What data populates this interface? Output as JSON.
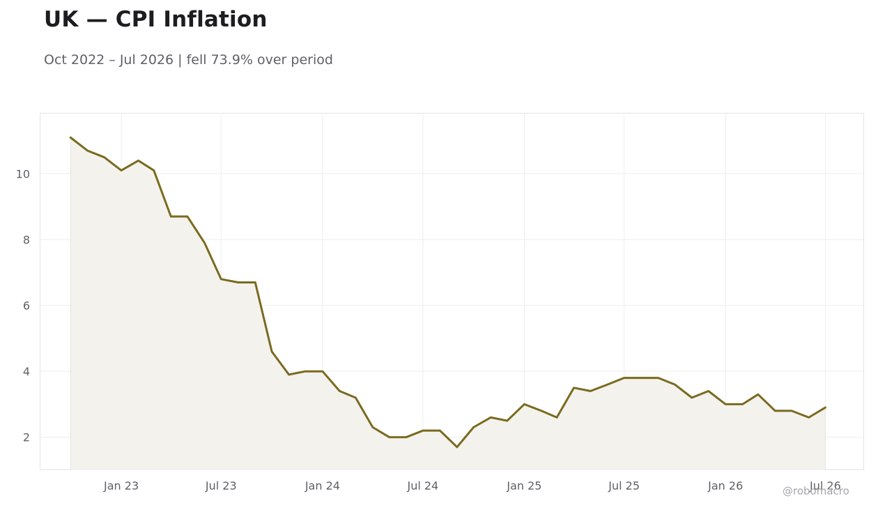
{
  "title": "UK — CPI Inflation",
  "subtitle": "Oct 2022 – Jul 2026 | fell 73.9% over period",
  "watermark": "@robomacro",
  "chart_data": {
    "type": "area",
    "title": "UK — CPI Inflation",
    "subtitle": "Oct 2022 – Jul 2026 | fell 73.9% over period",
    "xlabel": "",
    "ylabel": "",
    "grid": true,
    "legend": "none",
    "line_color": "#7a6a1f",
    "fill_color": "#f3f2ed",
    "ylim": [
      1.0,
      11.85
    ],
    "xlim": [
      "2022-08-06",
      "2026-09-08"
    ],
    "y_ticks": [
      2,
      4,
      6,
      8,
      10
    ],
    "y_tick_labels": [
      "2",
      "4",
      "6",
      "8",
      "10"
    ],
    "x_ticks": [
      "2023-01-01",
      "2023-07-01",
      "2024-01-01",
      "2024-07-01",
      "2025-01-01",
      "2025-07-01",
      "2026-01-01",
      "2026-07-01"
    ],
    "x_tick_labels": [
      "Jan 23",
      "Jul 23",
      "Jan 24",
      "Jul 24",
      "Jan 25",
      "Jul 25",
      "Jan 26",
      "Jul 26"
    ],
    "x": [
      "2022-10-01",
      "2022-11-01",
      "2022-12-01",
      "2023-01-01",
      "2023-02-01",
      "2023-03-01",
      "2023-04-01",
      "2023-05-01",
      "2023-06-01",
      "2023-07-01",
      "2023-08-01",
      "2023-09-01",
      "2023-10-01",
      "2023-11-01",
      "2023-12-01",
      "2024-01-01",
      "2024-02-01",
      "2024-03-01",
      "2024-04-01",
      "2024-05-01",
      "2024-06-01",
      "2024-07-01",
      "2024-08-01",
      "2024-09-01",
      "2024-10-01",
      "2024-11-01",
      "2024-12-01",
      "2025-01-01",
      "2025-02-01",
      "2025-03-01",
      "2025-04-01",
      "2025-05-01",
      "2025-06-01",
      "2025-07-01",
      "2025-08-01",
      "2025-09-01",
      "2025-10-01",
      "2025-11-01",
      "2025-12-01",
      "2026-01-01",
      "2026-02-01",
      "2026-03-01",
      "2026-04-01",
      "2026-05-01",
      "2026-06-01",
      "2026-07-01"
    ],
    "y": [
      11.1,
      10.7,
      10.5,
      10.1,
      10.4,
      10.1,
      8.7,
      8.7,
      7.9,
      6.8,
      6.7,
      6.7,
      4.6,
      3.9,
      4.0,
      4.0,
      3.4,
      3.2,
      2.3,
      2.0,
      2.0,
      2.2,
      2.2,
      1.7,
      2.3,
      2.6,
      2.5,
      3.0,
      2.8,
      2.6,
      3.5,
      3.4,
      3.6,
      3.8,
      3.8,
      3.8,
      3.6,
      3.2,
      3.4,
      3.0,
      3.0,
      3.3,
      2.8,
      2.8,
      2.6,
      2.9
    ]
  }
}
